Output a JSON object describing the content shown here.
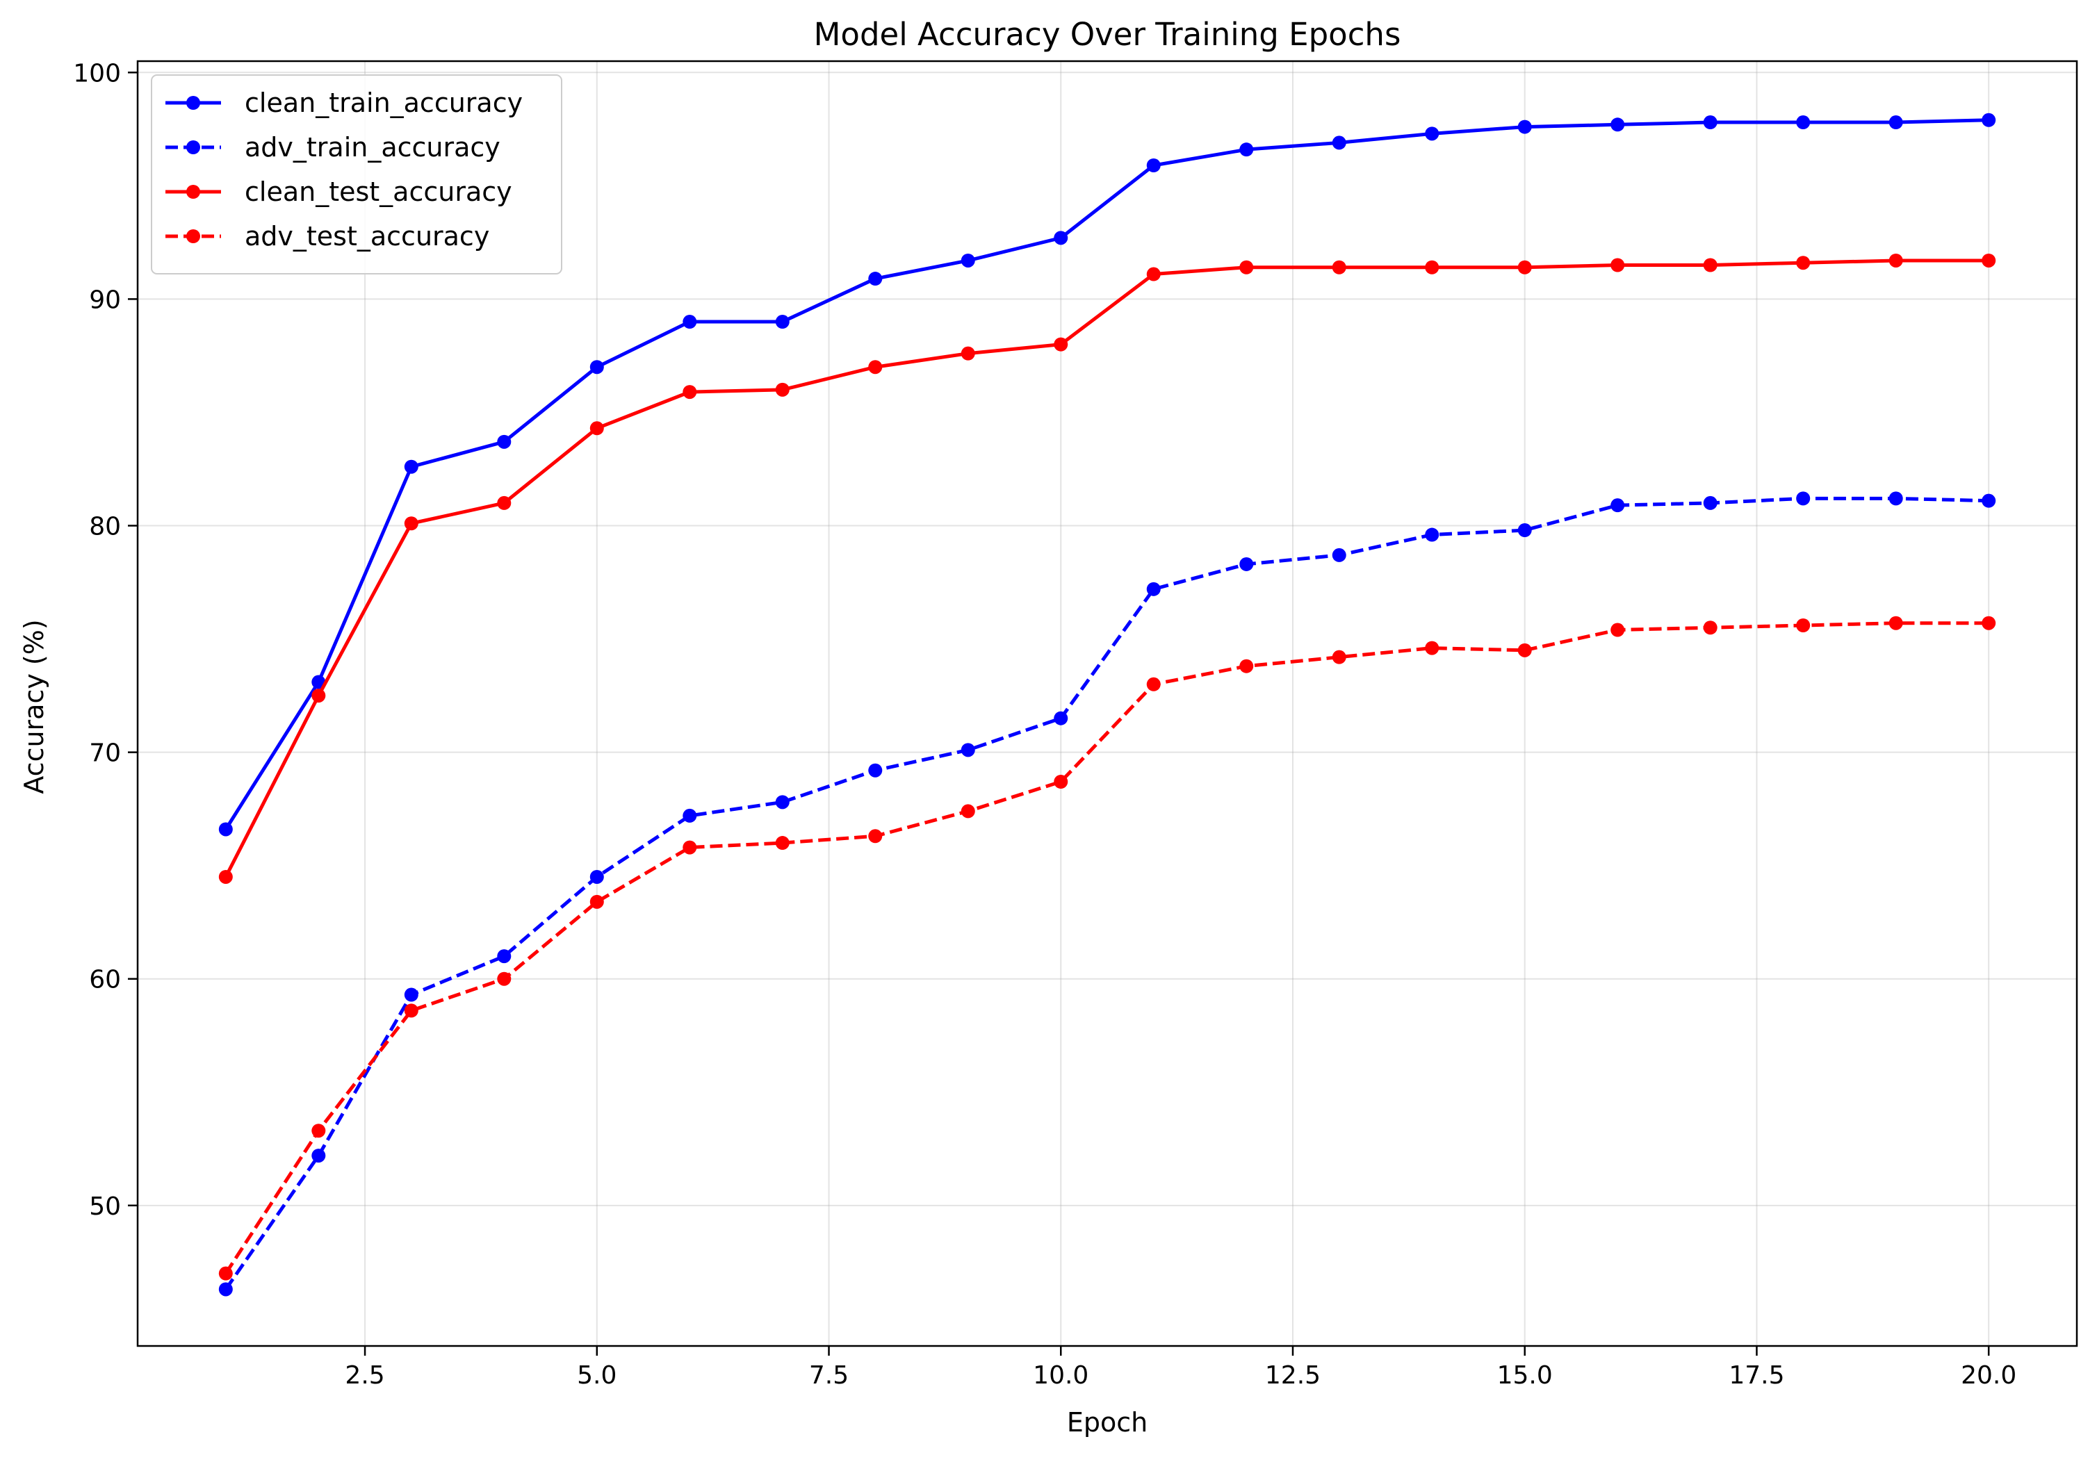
{
  "chart_data": {
    "type": "line",
    "title": "Model Accuracy Over Training Epochs",
    "xlabel": "Epoch",
    "ylabel": "Accuracy (%)",
    "xlim": [
      0.05,
      20.95
    ],
    "ylim": [
      43.8,
      100.5
    ],
    "xticks": [
      2.5,
      5.0,
      7.5,
      10.0,
      12.5,
      15.0,
      17.5,
      20.0
    ],
    "xtick_labels": [
      "2.5",
      "5.0",
      "7.5",
      "10.0",
      "12.5",
      "15.0",
      "17.5",
      "20.0"
    ],
    "yticks": [
      50,
      60,
      70,
      80,
      90,
      100
    ],
    "ytick_labels": [
      "50",
      "60",
      "70",
      "80",
      "90",
      "100"
    ],
    "grid": true,
    "legend_position": "top-left",
    "x": [
      1,
      2,
      3,
      4,
      5,
      6,
      7,
      8,
      9,
      10,
      11,
      12,
      13,
      14,
      15,
      16,
      17,
      18,
      19,
      20
    ],
    "series": [
      {
        "name": "clean_train_accuracy",
        "color": "#0000ff",
        "dash": "solid",
        "values": [
          66.6,
          73.1,
          82.6,
          83.7,
          87.0,
          89.0,
          89.0,
          90.9,
          91.7,
          92.7,
          95.9,
          96.6,
          96.9,
          97.3,
          97.6,
          97.7,
          97.8,
          97.8,
          97.8,
          97.9
        ]
      },
      {
        "name": "adv_train_accuracy",
        "color": "#0000ff",
        "dash": "dashed",
        "values": [
          46.3,
          52.2,
          59.3,
          61.0,
          64.5,
          67.2,
          67.8,
          69.2,
          70.1,
          71.5,
          77.2,
          78.3,
          78.7,
          79.6,
          79.8,
          80.9,
          81.0,
          81.2,
          81.2,
          81.1
        ]
      },
      {
        "name": "clean_test_accuracy",
        "color": "#ff0000",
        "dash": "solid",
        "values": [
          64.5,
          72.5,
          80.1,
          81.0,
          84.3,
          85.9,
          86.0,
          87.0,
          87.6,
          88.0,
          91.1,
          91.4,
          91.4,
          91.4,
          91.4,
          91.5,
          91.5,
          91.6,
          91.7,
          91.7
        ]
      },
      {
        "name": "adv_test_accuracy",
        "color": "#ff0000",
        "dash": "dashed",
        "values": [
          47.0,
          53.3,
          58.6,
          60.0,
          63.4,
          65.8,
          66.0,
          66.3,
          67.4,
          68.7,
          73.0,
          73.8,
          74.2,
          74.6,
          74.5,
          75.4,
          75.5,
          75.6,
          75.7,
          75.7
        ]
      }
    ]
  }
}
